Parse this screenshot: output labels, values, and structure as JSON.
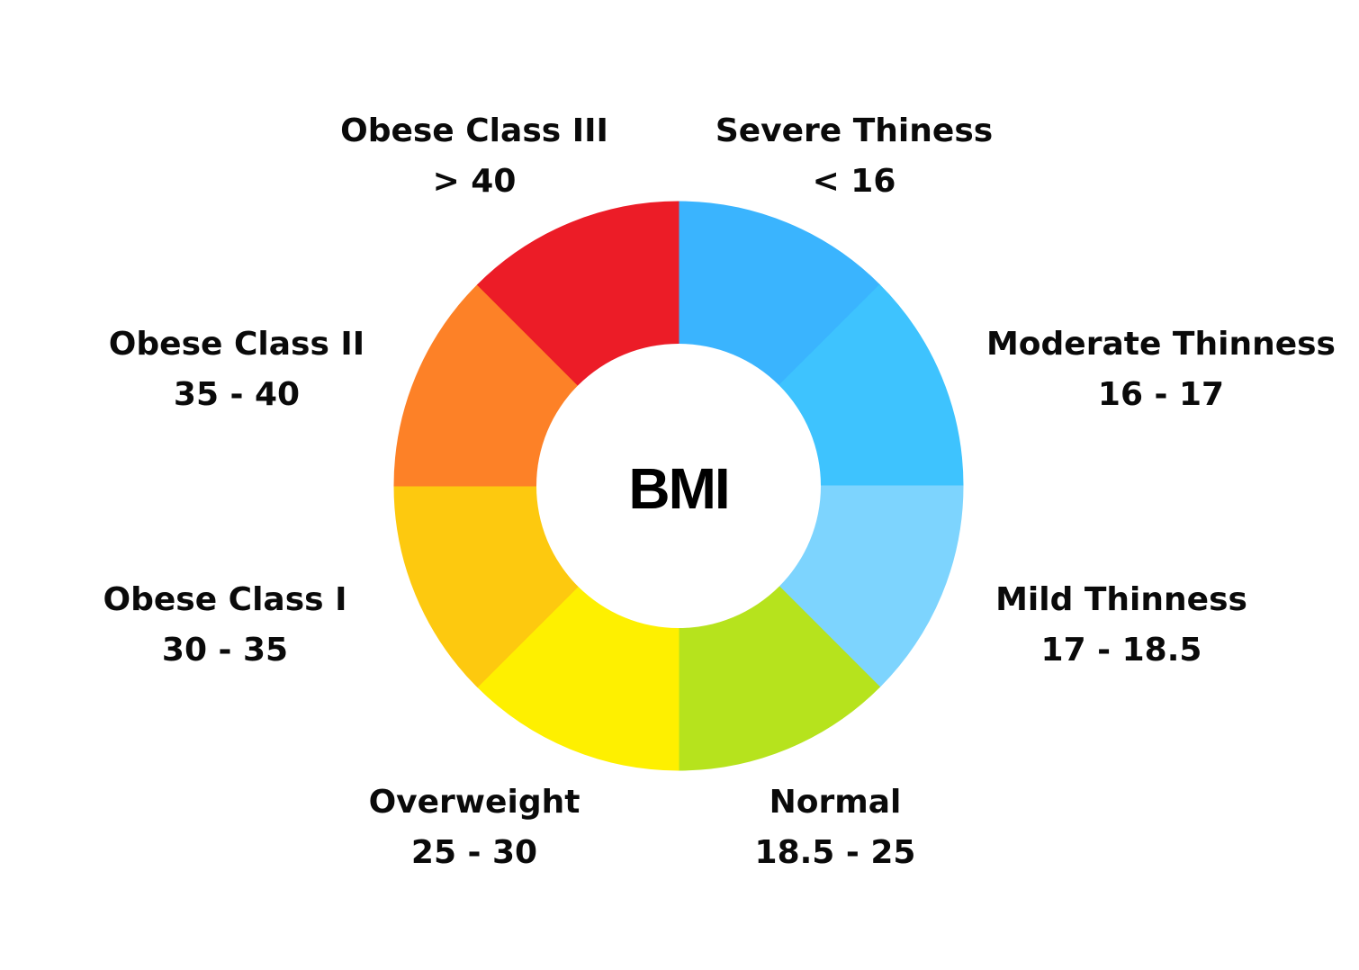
{
  "center_label": "BMI",
  "categories": [
    {
      "name": "Severe Thiness",
      "range": "< 16",
      "color": "#3AB4FE"
    },
    {
      "name": "Moderate Thinness",
      "range": "16 - 17",
      "color": "#3EC3FE"
    },
    {
      "name": "Mild Thinness",
      "range": "17 - 18.5",
      "color": "#7DD4FE"
    },
    {
      "name": "Normal",
      "range": "18.5 - 25",
      "color": "#B6E31D"
    },
    {
      "name": "Overweight",
      "range": "25 - 30",
      "color": "#FEF000"
    },
    {
      "name": "Obese Class I",
      "range": "30 - 35",
      "color": "#FDC90F"
    },
    {
      "name": "Obese Class II",
      "range": "35 - 40",
      "color": "#FD8127"
    },
    {
      "name": "Obese Class III",
      "range": "> 40",
      "color": "#EC1C27"
    }
  ]
}
